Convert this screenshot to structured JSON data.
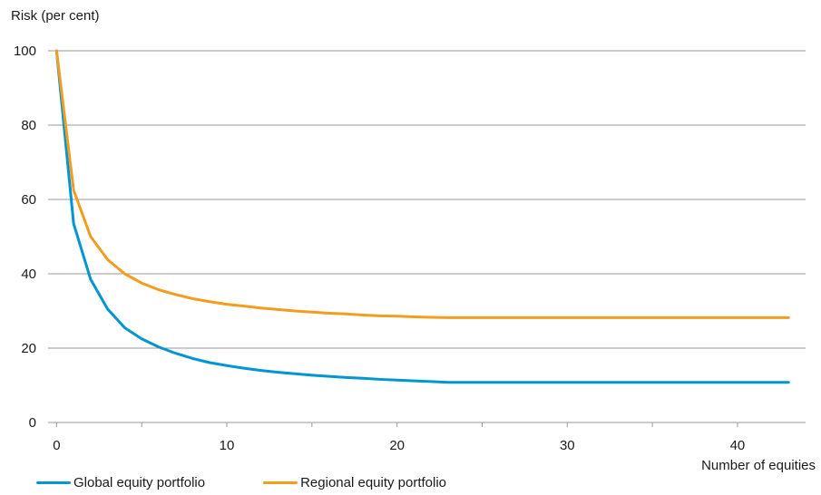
{
  "chart_data": {
    "type": "line",
    "title": "",
    "ylabel": "Risk (per cent)",
    "xlabel": "Number of equities",
    "xlim": [
      -0.5,
      44
    ],
    "ylim": [
      0,
      100
    ],
    "x_ticks": [
      0,
      10,
      20,
      30,
      40
    ],
    "x_minor_ticks": [
      5,
      15,
      25,
      35,
      45
    ],
    "y_ticks": [
      0,
      20,
      40,
      60,
      80,
      100
    ],
    "grid": "horizontal",
    "legend_position": "bottom-left",
    "series": [
      {
        "name": "Global equity portfolio",
        "color": "#0095d3",
        "x": [
          0,
          1,
          2,
          3,
          4,
          5,
          6,
          7,
          8,
          9,
          10,
          11,
          12,
          13,
          14,
          15,
          16,
          17,
          18,
          19,
          20,
          21,
          22,
          23,
          43
        ],
        "y": [
          100,
          53.5,
          38.5,
          30.5,
          25.5,
          22.5,
          20.3,
          18.6,
          17.2,
          16.1,
          15.3,
          14.6,
          14.0,
          13.5,
          13.1,
          12.7,
          12.4,
          12.1,
          11.9,
          11.6,
          11.4,
          11.2,
          11.0,
          10.8,
          10.8
        ]
      },
      {
        "name": "Regional equity portfolio",
        "color": "#f39c1f",
        "x": [
          0,
          1,
          2,
          3,
          4,
          5,
          6,
          7,
          8,
          9,
          10,
          11,
          12,
          13,
          14,
          15,
          16,
          17,
          18,
          19,
          20,
          21,
          22,
          23,
          43
        ],
        "y": [
          100,
          62.5,
          50,
          43.8,
          40,
          37.5,
          35.7,
          34.4,
          33.3,
          32.5,
          31.8,
          31.3,
          30.8,
          30.4,
          30.0,
          29.7,
          29.4,
          29.2,
          28.9,
          28.7,
          28.6,
          28.4,
          28.3,
          28.2,
          28.2
        ]
      }
    ]
  }
}
